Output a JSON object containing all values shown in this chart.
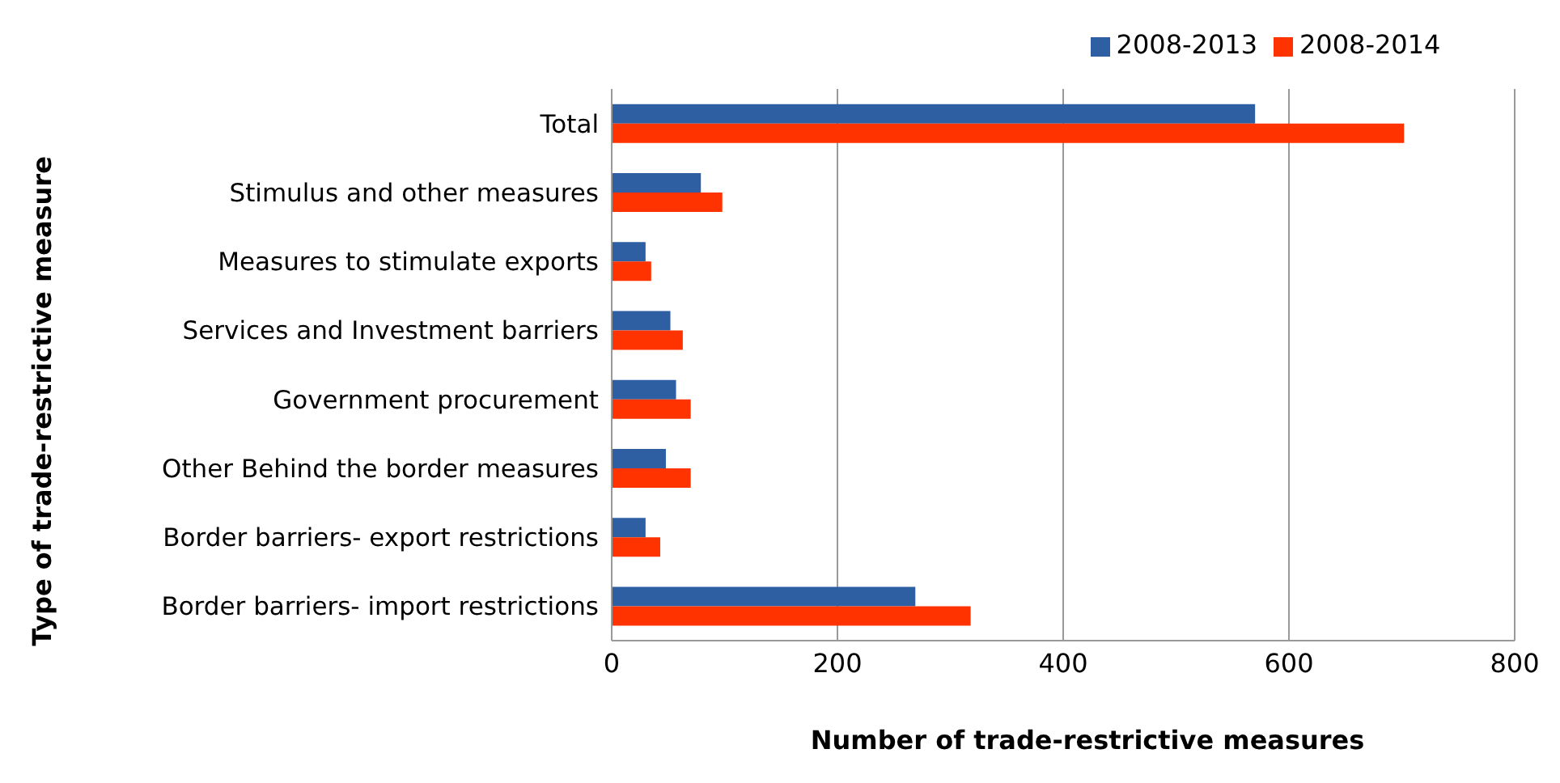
{
  "chart_data": {
    "type": "bar",
    "orientation": "horizontal",
    "xlabel": "Number of trade-restrictive measures",
    "ylabel": "Type of trade-restrictive measure",
    "categories": [
      "Total",
      "Stimulus and other measures",
      "Measures to stimulate exports",
      "Services and Investment barriers",
      "Government procurement",
      "Other Behind the border measures",
      "Border barriers- export restrictions",
      "Border barriers- import restrictions"
    ],
    "series": [
      {
        "name": "2008-2013",
        "color": "#2e5fa3",
        "values": [
          570,
          79,
          30,
          52,
          57,
          48,
          30,
          269
        ]
      },
      {
        "name": "2008-2014",
        "color": "#ff3300",
        "values": [
          702,
          98,
          35,
          63,
          70,
          70,
          43,
          318
        ]
      }
    ],
    "xlim": [
      0,
      800
    ],
    "xticks": [
      0,
      200,
      400,
      600,
      800
    ],
    "grid": "x",
    "legend": "top"
  }
}
